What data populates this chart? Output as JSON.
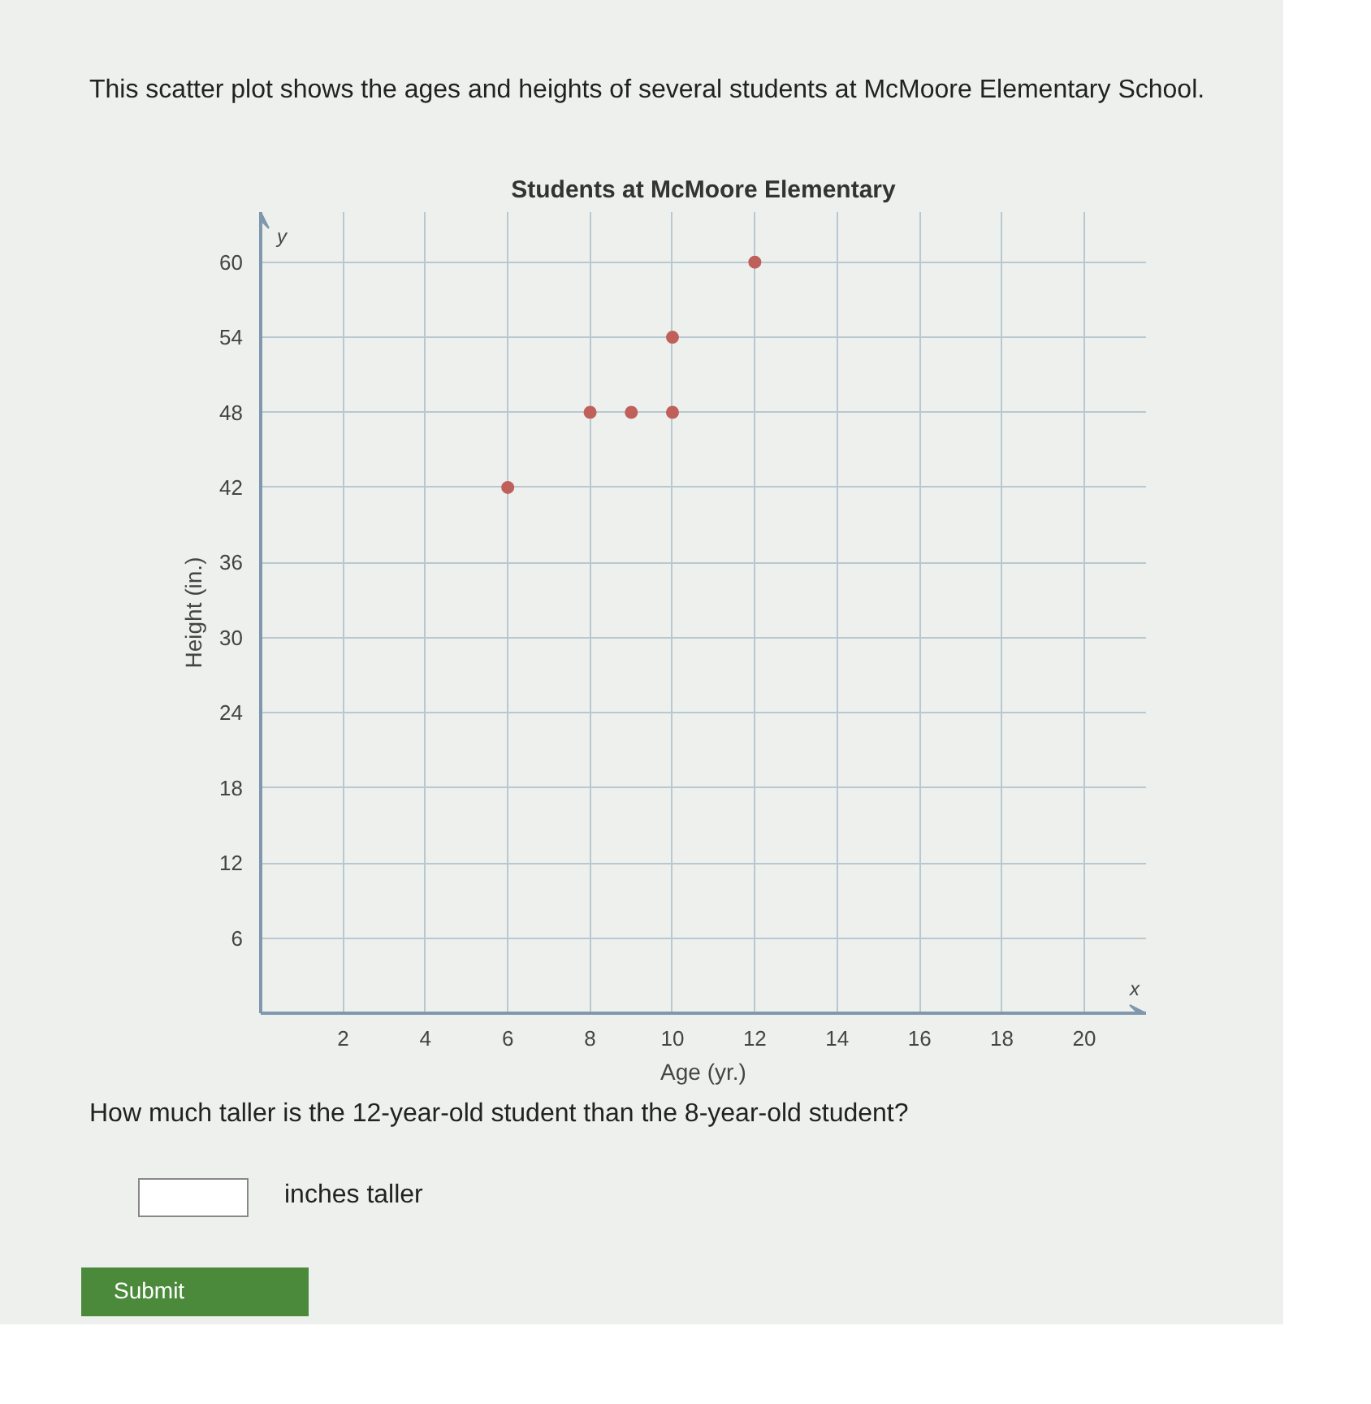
{
  "chart_data": {
    "type": "scatter",
    "title": "Students at McMoore Elementary",
    "xlabel": "Age (yr.)",
    "ylabel": "Height (in.)",
    "annotations": [
      "This scatter plot shows the ages and heights of several students at McMoore Elementary School.",
      "How much taller is the 12-year-old student than the 8-year-old student?",
      "inches taller",
      "Submit",
      "y",
      "x"
    ],
    "x": [
      6,
      8,
      9,
      10,
      10,
      12
    ],
    "values": [
      42,
      48,
      48,
      48,
      54,
      60
    ],
    "color": "#c0605a",
    "marker": "circle",
    "xlim": [
      0,
      21.5
    ],
    "ylim": [
      0,
      64
    ],
    "xticks": [
      2,
      4,
      6,
      8,
      10,
      12,
      14,
      16,
      18,
      20
    ],
    "yticks": [
      6,
      12,
      18,
      24,
      30,
      36,
      42,
      48,
      54,
      60
    ],
    "grid": true
  }
}
